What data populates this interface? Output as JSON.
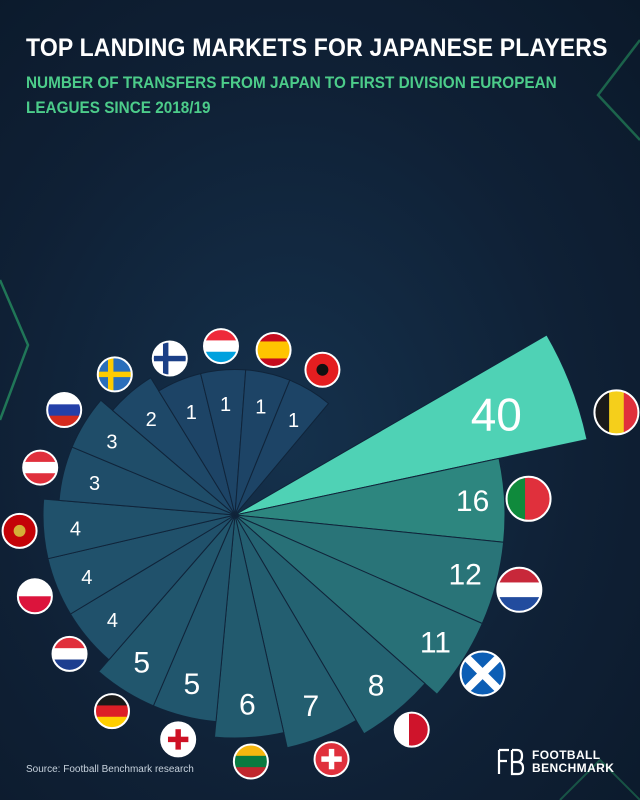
{
  "header": {
    "title": "TOP LANDING MARKETS FOR JAPANESE PLAYERS",
    "subtitle": "NUMBER OF TRANSFERS FROM JAPAN TO FIRST DIVISION EUROPEAN LEAGUES SINCE 2018/19"
  },
  "footer": {
    "source": "Source: Football Benchmark research",
    "logo_line1": "FOOTBALL",
    "logo_line2": "BENCHMARK"
  },
  "colors": {
    "background": "#0f2035",
    "title": "#ffffff",
    "subtitle": "#4ccc8a",
    "top_segment": "#4fd2b5",
    "low_segment": "#1d4466",
    "high_segment": "#2a7d7a",
    "accent_line": "#3dff8c"
  },
  "chart_data": {
    "type": "bar",
    "layout": "radial",
    "title": "TOP LANDING MARKETS FOR JAPANESE PLAYERS",
    "subtitle": "NUMBER OF TRANSFERS FROM JAPAN TO FIRST DIVISION EUROPEAN LEAGUES SINCE 2018/19",
    "categories": [
      "Belgium",
      "Portugal",
      "Netherlands",
      "Scotland",
      "Malta",
      "Switzerland",
      "Lithuania",
      "England",
      "Germany",
      "Croatia",
      "Poland",
      "Montenegro",
      "Austria",
      "Russia",
      "Sweden",
      "Finland",
      "Luxembourg",
      "Spain",
      "Albania"
    ],
    "values": [
      40,
      16,
      12,
      11,
      8,
      7,
      6,
      5,
      5,
      4,
      4,
      4,
      3,
      3,
      2,
      1,
      1,
      1,
      1
    ],
    "flag_icons": [
      "belgium-flag-icon",
      "portugal-flag-icon",
      "netherlands-flag-icon",
      "scotland-flag-icon",
      "malta-flag-icon",
      "switzerland-flag-icon",
      "lithuania-flag-icon",
      "england-flag-icon",
      "germany-flag-icon",
      "croatia-flag-icon",
      "poland-flag-icon",
      "montenegro-flag-icon",
      "austria-flag-icon",
      "russia-flag-icon",
      "sweden-flag-icon",
      "finland-flag-icon",
      "luxembourg-flag-icon",
      "spain-flag-icon",
      "albania-flag-icon"
    ],
    "data_labels": [
      "40",
      "16",
      "12",
      "11",
      "8",
      "7",
      "6",
      "5",
      "5",
      "4",
      "4",
      "4",
      "3",
      "3",
      "2",
      "1",
      "1",
      "1",
      "1"
    ],
    "xlabel": "",
    "ylabel": "",
    "grid": false
  }
}
